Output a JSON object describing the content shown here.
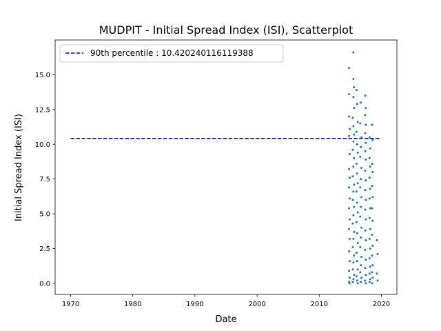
{
  "chart_data": {
    "type": "scatter",
    "title": "MUDPIT - Initial Spread Index (ISI), Scatterplot",
    "xlabel": "Date",
    "ylabel": "Initial Spread Index (ISI)",
    "xlim": [
      1967.5,
      2022.5
    ],
    "ylim": [
      -0.8,
      17.5
    ],
    "xticks": [
      1970,
      1980,
      1990,
      2000,
      2010,
      2020
    ],
    "xtick_labels": [
      "1970",
      "1980",
      "1990",
      "2000",
      "2010",
      "2020"
    ],
    "yticks": [
      0.0,
      2.5,
      5.0,
      7.5,
      10.0,
      12.5,
      15.0
    ],
    "ytick_labels": [
      "0.0",
      "2.5",
      "5.0",
      "7.5",
      "10.0",
      "12.5",
      "15.0"
    ],
    "grid": false,
    "legend": {
      "placement": "top-left",
      "entries": [
        "90th percentile : 10.420240116119388"
      ]
    },
    "colors": {
      "points": "#1f77b4",
      "percentile_line": "#0000cd"
    },
    "reference_lines": [
      {
        "name": "90th percentile : 10.420240116119388",
        "y": 10.420240116119388,
        "x_start": 1970,
        "x_end": 2019.8,
        "style": "dashed"
      }
    ],
    "series": [
      {
        "values_note_free": true,
        "points": [
          [
            2014.8,
            15.5
          ],
          [
            2014.8,
            13.6
          ],
          [
            2014.8,
            12.0
          ],
          [
            2014.9,
            11.1
          ],
          [
            2014.8,
            10.6
          ],
          [
            2014.9,
            9.3
          ],
          [
            2014.8,
            8.2
          ],
          [
            2014.9,
            7.6
          ],
          [
            2014.8,
            6.9
          ],
          [
            2014.9,
            6.1
          ],
          [
            2014.8,
            5.4
          ],
          [
            2014.9,
            4.6
          ],
          [
            2014.8,
            3.9
          ],
          [
            2014.9,
            3.2
          ],
          [
            2014.8,
            2.3
          ],
          [
            2014.9,
            1.6
          ],
          [
            2014.8,
            0.9
          ],
          [
            2014.9,
            0.4
          ],
          [
            2014.8,
            0.1
          ],
          [
            2014.9,
            0.0
          ],
          [
            2015.5,
            16.6
          ],
          [
            2015.5,
            14.7
          ],
          [
            2015.6,
            14.1
          ],
          [
            2015.5,
            13.4
          ],
          [
            2015.6,
            12.6
          ],
          [
            2015.4,
            11.9
          ],
          [
            2015.5,
            11.3
          ],
          [
            2015.6,
            10.7
          ],
          [
            2015.5,
            10.2
          ],
          [
            2015.4,
            9.6
          ],
          [
            2015.6,
            9.0
          ],
          [
            2015.5,
            8.4
          ],
          [
            2015.4,
            7.7
          ],
          [
            2015.6,
            7.1
          ],
          [
            2015.5,
            6.6
          ],
          [
            2015.4,
            6.0
          ],
          [
            2015.6,
            5.5
          ],
          [
            2015.5,
            4.9
          ],
          [
            2015.4,
            4.3
          ],
          [
            2015.6,
            3.7
          ],
          [
            2015.5,
            3.2
          ],
          [
            2015.4,
            2.6
          ],
          [
            2015.6,
            2.0
          ],
          [
            2015.5,
            1.5
          ],
          [
            2015.4,
            1.0
          ],
          [
            2015.6,
            0.6
          ],
          [
            2015.5,
            0.3
          ],
          [
            2015.4,
            0.1
          ],
          [
            2016.0,
            13.9
          ],
          [
            2016.1,
            12.9
          ],
          [
            2016.2,
            11.6
          ],
          [
            2016.0,
            10.9
          ],
          [
            2016.1,
            10.0
          ],
          [
            2016.2,
            9.4
          ],
          [
            2016.0,
            8.6
          ],
          [
            2016.1,
            7.9
          ],
          [
            2016.2,
            7.2
          ],
          [
            2016.0,
            6.6
          ],
          [
            2016.1,
            5.8
          ],
          [
            2016.2,
            5.1
          ],
          [
            2016.0,
            4.4
          ],
          [
            2016.1,
            3.6
          ],
          [
            2016.2,
            2.9
          ],
          [
            2016.0,
            2.2
          ],
          [
            2016.1,
            1.6
          ],
          [
            2016.2,
            1.0
          ],
          [
            2016.0,
            0.5
          ],
          [
            2016.1,
            0.2
          ],
          [
            2016.2,
            0.0
          ],
          [
            2016.7,
            13.0
          ],
          [
            2016.6,
            11.5
          ],
          [
            2016.8,
            10.5
          ],
          [
            2016.7,
            9.8
          ],
          [
            2016.6,
            9.1
          ],
          [
            2016.8,
            8.3
          ],
          [
            2016.7,
            7.5
          ],
          [
            2016.6,
            6.9
          ],
          [
            2016.8,
            6.2
          ],
          [
            2016.7,
            5.5
          ],
          [
            2016.6,
            4.8
          ],
          [
            2016.8,
            4.0
          ],
          [
            2016.7,
            3.3
          ],
          [
            2016.6,
            2.6
          ],
          [
            2016.8,
            1.9
          ],
          [
            2016.7,
            1.3
          ],
          [
            2016.6,
            0.8
          ],
          [
            2016.8,
            0.4
          ],
          [
            2016.7,
            0.1
          ],
          [
            2017.4,
            13.5
          ],
          [
            2017.5,
            12.6
          ],
          [
            2017.4,
            12.1
          ],
          [
            2017.5,
            11.4
          ],
          [
            2017.4,
            10.8
          ],
          [
            2017.5,
            10.1
          ],
          [
            2017.4,
            9.5
          ],
          [
            2017.5,
            8.9
          ],
          [
            2017.4,
            8.1
          ],
          [
            2017.5,
            7.4
          ],
          [
            2017.4,
            6.7
          ],
          [
            2017.5,
            6.0
          ],
          [
            2017.4,
            5.3
          ],
          [
            2017.5,
            4.6
          ],
          [
            2017.4,
            3.8
          ],
          [
            2017.5,
            3.1
          ],
          [
            2017.4,
            2.4
          ],
          [
            2017.5,
            1.7
          ],
          [
            2017.4,
            1.1
          ],
          [
            2017.5,
            0.6
          ],
          [
            2017.4,
            0.2
          ],
          [
            2017.5,
            0.0
          ],
          [
            2018.1,
            10.5
          ],
          [
            2018.2,
            9.7
          ],
          [
            2018.1,
            9.0
          ],
          [
            2018.2,
            8.4
          ],
          [
            2018.1,
            7.6
          ],
          [
            2018.2,
            6.8
          ],
          [
            2018.1,
            6.1
          ],
          [
            2018.2,
            5.4
          ],
          [
            2018.1,
            4.7
          ],
          [
            2018.2,
            3.9
          ],
          [
            2018.1,
            3.2
          ],
          [
            2018.2,
            2.5
          ],
          [
            2018.1,
            1.8
          ],
          [
            2018.2,
            1.2
          ],
          [
            2018.1,
            0.7
          ],
          [
            2018.2,
            0.3
          ],
          [
            2018.1,
            0.1
          ],
          [
            2018.5,
            11.4
          ],
          [
            2018.6,
            10.3
          ],
          [
            2018.5,
            8.6
          ],
          [
            2018.6,
            8.0
          ],
          [
            2018.5,
            7.0
          ],
          [
            2018.6,
            6.2
          ],
          [
            2018.5,
            5.4
          ],
          [
            2018.6,
            4.5
          ],
          [
            2018.5,
            3.5
          ],
          [
            2018.6,
            2.7
          ],
          [
            2018.5,
            2.0
          ],
          [
            2018.6,
            1.3
          ],
          [
            2018.5,
            0.8
          ],
          [
            2018.6,
            0.4
          ],
          [
            2018.5,
            0.0
          ],
          [
            2019.3,
            3.1
          ],
          [
            2019.4,
            2.1
          ],
          [
            2019.3,
            0.7
          ],
          [
            2019.4,
            0.2
          ]
        ]
      }
    ]
  }
}
